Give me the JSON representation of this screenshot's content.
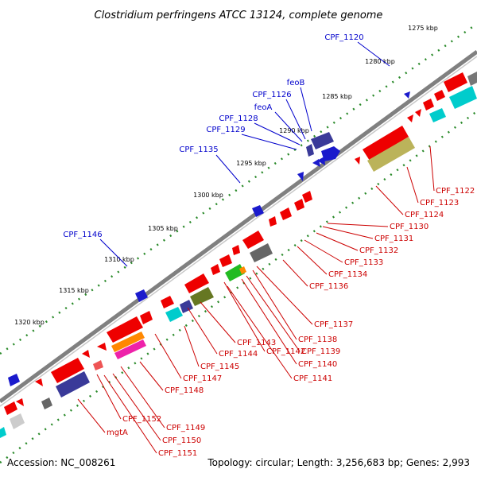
{
  "title": "Clostridium perfringens ATCC 13124, complete genome",
  "footer": {
    "accession": "Accession: NC_008261",
    "topology": "Topology: circular; Length: 3,256,683 bp; Genes: 2,993"
  },
  "colors": {
    "backbone": "#808080",
    "tick_dots": "#2a8a2a",
    "forward_label": "#0000cc",
    "reverse_label": "#cc0000",
    "forward_feature": "#1a1acc",
    "reverse_feature": "#ee0000"
  },
  "ticks": [
    "1275 kbp",
    "1280 kbp",
    "1285 kbp",
    "1290 kbp",
    "1295 kbp",
    "1300 kbp",
    "1305 kbp",
    "1310 kbp",
    "1315 kbp",
    "1320 kbp"
  ],
  "forward_labels": [
    "CPF_1120",
    "feoB",
    "CPF_1126",
    "feoA",
    "CPF_1128",
    "CPF_1129",
    "CPF_1135",
    "CPF_1146"
  ],
  "reverse_labels": [
    "CPF_1122",
    "CPF_1123",
    "CPF_1124",
    "CPF_1130",
    "CPF_1131",
    "CPF_1132",
    "CPF_1133",
    "CPF_1134",
    "CPF_1136",
    "CPF_1137",
    "CPF_1138",
    "CPF_1139",
    "CPF_1140",
    "CPF_1141",
    "CPF_1142",
    "CPF_1143",
    "CPF_1144",
    "CPF_1145",
    "CPF_1147",
    "CPF_1148",
    "CPF_1149",
    "CPF_1150",
    "CPF_1151",
    "CPF_1152",
    "mgtA"
  ]
}
